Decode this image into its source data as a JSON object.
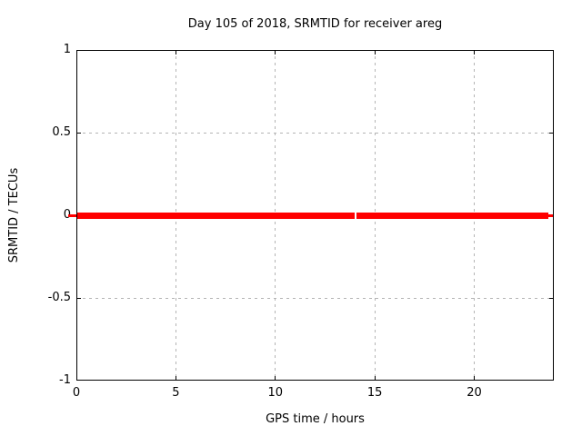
{
  "chart_data": {
    "type": "line",
    "title": "Day 105 of 2018, SRMTID for receiver areg",
    "xlabel": "GPS time / hours",
    "ylabel": "SRMTID / TECUs",
    "xlim": [
      0,
      24
    ],
    "ylim": [
      -1,
      1
    ],
    "grid": true,
    "grid_style": "dashed",
    "legend": "none",
    "x_ticks": [
      {
        "value": 0,
        "label": "0"
      },
      {
        "value": 5,
        "label": "5"
      },
      {
        "value": 10,
        "label": "10"
      },
      {
        "value": 15,
        "label": "15"
      },
      {
        "value": 20,
        "label": "20"
      }
    ],
    "y_ticks": [
      {
        "value": -1,
        "label": "-1"
      },
      {
        "value": -0.5,
        "label": "-0.5"
      },
      {
        "value": 0,
        "label": "0"
      },
      {
        "value": 0.5,
        "label": "0.5"
      },
      {
        "value": 1,
        "label": "1"
      }
    ],
    "series": [
      {
        "name": "SRMTID",
        "color": "#ff0000",
        "y_value": 0,
        "line_thickness_px": 7,
        "segments_x_hours": [
          [
            0.0,
            13.97
          ],
          [
            14.08,
            23.73
          ]
        ],
        "description": "SRMTID constant at 0 TECUs over the whole day; thick red line at y=0 with a small data gap near 14.0 h"
      }
    ],
    "zero_line_caps": {
      "color": "#ff0000",
      "thickness_px": 3,
      "left_x_hours": [
        -0.42,
        0.05
      ],
      "right_x_hours": [
        23.73,
        24.0
      ]
    }
  },
  "colors": {
    "background": "#ffffff",
    "text": "#000000",
    "border": "#000000",
    "grid": "#b4b4b4",
    "line": "#ff0000"
  }
}
